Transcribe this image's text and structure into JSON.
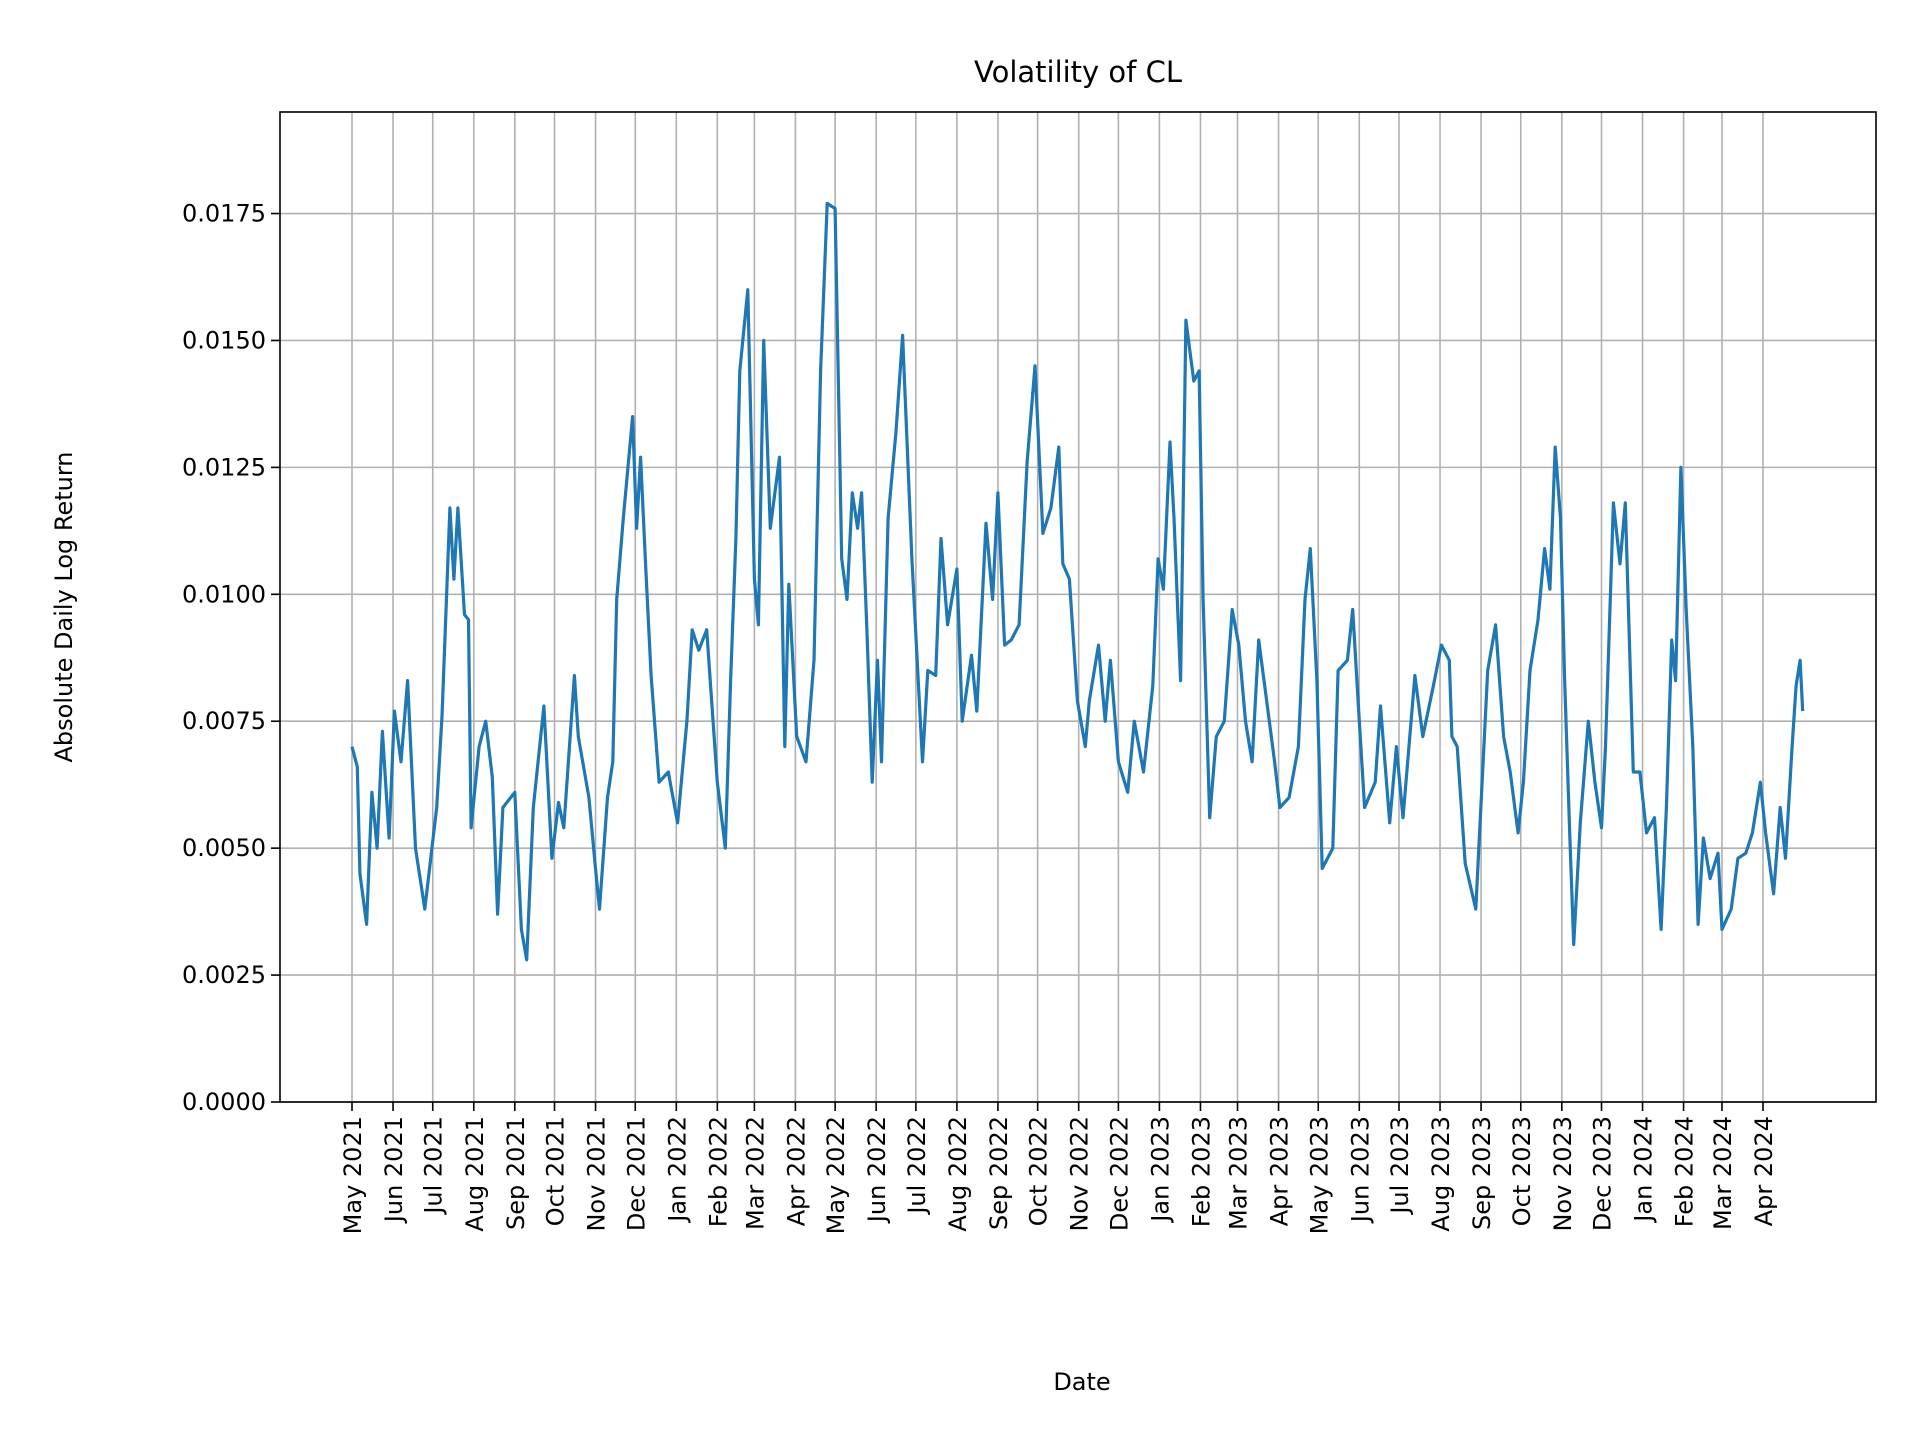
{
  "chart_data": {
    "type": "line",
    "title": "Volatility of CL",
    "xlabel": "Date",
    "ylabel": "Absolute Daily Log Return",
    "ylim": [
      0,
      0.0195
    ],
    "y_ticks": [
      "0.0000",
      "0.0025",
      "0.0050",
      "0.0075",
      "0.0100",
      "0.0125",
      "0.0150",
      "0.0175"
    ],
    "x_ticks": [
      "May 2021",
      "Jun 2021",
      "Jul 2021",
      "Aug 2021",
      "Sep 2021",
      "Oct 2021",
      "Nov 2021",
      "Dec 2021",
      "Jan 2022",
      "Feb 2022",
      "Mar 2022",
      "Apr 2022",
      "May 2022",
      "Jun 2022",
      "Jul 2022",
      "Aug 2022",
      "Sep 2022",
      "Oct 2022",
      "Nov 2022",
      "Dec 2022",
      "Jan 2023",
      "Feb 2023",
      "Mar 2023",
      "Apr 2023",
      "May 2023",
      "Jun 2023",
      "Jul 2023",
      "Aug 2023",
      "Sep 2023",
      "Oct 2023",
      "Nov 2023",
      "Dec 2023",
      "Jan 2024",
      "Feb 2024",
      "Mar 2024",
      "Apr 2024"
    ],
    "grid": true,
    "color": "#1f77b4",
    "points": [
      [
        "2021-05-01",
        0.007
      ],
      [
        "2021-05-05",
        0.0066
      ],
      [
        "2021-05-07",
        0.0045
      ],
      [
        "2021-05-12",
        0.0035
      ],
      [
        "2021-05-16",
        0.0061
      ],
      [
        "2021-05-20",
        0.005
      ],
      [
        "2021-05-24",
        0.0073
      ],
      [
        "2021-05-29",
        0.0052
      ],
      [
        "2021-06-02",
        0.0077
      ],
      [
        "2021-06-07",
        0.0067
      ],
      [
        "2021-06-12",
        0.0083
      ],
      [
        "2021-06-18",
        0.005
      ],
      [
        "2021-06-25",
        0.0038
      ],
      [
        "2021-07-04",
        0.0058
      ],
      [
        "2021-07-08",
        0.0076
      ],
      [
        "2021-07-14",
        0.0117
      ],
      [
        "2021-07-17",
        0.0103
      ],
      [
        "2021-07-20",
        0.0117
      ],
      [
        "2021-07-25",
        0.0096
      ],
      [
        "2021-07-28",
        0.0095
      ],
      [
        "2021-07-30",
        0.0054
      ],
      [
        "2021-08-05",
        0.007
      ],
      [
        "2021-08-10",
        0.0075
      ],
      [
        "2021-08-15",
        0.0064
      ],
      [
        "2021-08-19",
        0.0037
      ],
      [
        "2021-08-23",
        0.0058
      ],
      [
        "2021-08-29",
        0.006
      ],
      [
        "2021-09-01",
        0.0061
      ],
      [
        "2021-09-06",
        0.0034
      ],
      [
        "2021-09-10",
        0.0028
      ],
      [
        "2021-09-15",
        0.0058
      ],
      [
        "2021-09-23",
        0.0078
      ],
      [
        "2021-09-29",
        0.0048
      ],
      [
        "2021-10-04",
        0.0059
      ],
      [
        "2021-10-08",
        0.0054
      ],
      [
        "2021-10-16",
        0.0084
      ],
      [
        "2021-10-19",
        0.0072
      ],
      [
        "2021-10-27",
        0.006
      ],
      [
        "2021-11-01",
        0.0046
      ],
      [
        "2021-11-04",
        0.0038
      ],
      [
        "2021-11-10",
        0.006
      ],
      [
        "2021-11-14",
        0.0067
      ],
      [
        "2021-11-17",
        0.0099
      ],
      [
        "2021-11-22",
        0.0115
      ],
      [
        "2021-11-29",
        0.0135
      ],
      [
        "2021-12-02",
        0.0113
      ],
      [
        "2021-12-05",
        0.0127
      ],
      [
        "2021-12-09",
        0.0105
      ],
      [
        "2021-12-13",
        0.0084
      ],
      [
        "2021-12-19",
        0.0063
      ],
      [
        "2021-12-26",
        0.0065
      ],
      [
        "2022-01-02",
        0.0055
      ],
      [
        "2022-01-09",
        0.0075
      ],
      [
        "2022-01-13",
        0.0093
      ],
      [
        "2022-01-18",
        0.0089
      ],
      [
        "2022-01-24",
        0.0093
      ],
      [
        "2022-02-01",
        0.0063
      ],
      [
        "2022-02-07",
        0.005
      ],
      [
        "2022-02-11",
        0.0083
      ],
      [
        "2022-02-15",
        0.0111
      ],
      [
        "2022-02-18",
        0.0144
      ],
      [
        "2022-02-24",
        0.016
      ],
      [
        "2022-03-01",
        0.0103
      ],
      [
        "2022-03-04",
        0.0094
      ],
      [
        "2022-03-08",
        0.015
      ],
      [
        "2022-03-13",
        0.0113
      ],
      [
        "2022-03-20",
        0.0127
      ],
      [
        "2022-03-24",
        0.007
      ],
      [
        "2022-03-27",
        0.0102
      ],
      [
        "2022-04-02",
        0.0072
      ],
      [
        "2022-04-09",
        0.0067
      ],
      [
        "2022-04-15",
        0.0087
      ],
      [
        "2022-04-20",
        0.0144
      ],
      [
        "2022-04-25",
        0.0177
      ],
      [
        "2022-05-01",
        0.0176
      ],
      [
        "2022-05-06",
        0.0107
      ],
      [
        "2022-05-10",
        0.0099
      ],
      [
        "2022-05-14",
        0.012
      ],
      [
        "2022-05-18",
        0.0113
      ],
      [
        "2022-05-21",
        0.012
      ],
      [
        "2022-05-25",
        0.0093
      ],
      [
        "2022-05-29",
        0.0063
      ],
      [
        "2022-06-02",
        0.0087
      ],
      [
        "2022-06-05",
        0.0067
      ],
      [
        "2022-06-10",
        0.0115
      ],
      [
        "2022-06-16",
        0.0132
      ],
      [
        "2022-06-21",
        0.0151
      ],
      [
        "2022-06-28",
        0.0107
      ],
      [
        "2022-07-03",
        0.0082
      ],
      [
        "2022-07-06",
        0.0067
      ],
      [
        "2022-07-10",
        0.0085
      ],
      [
        "2022-07-16",
        0.0084
      ],
      [
        "2022-07-20",
        0.0111
      ],
      [
        "2022-07-25",
        0.0094
      ],
      [
        "2022-08-01",
        0.0105
      ],
      [
        "2022-08-05",
        0.0075
      ],
      [
        "2022-08-12",
        0.0088
      ],
      [
        "2022-08-16",
        0.0077
      ],
      [
        "2022-08-23",
        0.0114
      ],
      [
        "2022-08-28",
        0.0099
      ],
      [
        "2022-09-01",
        0.012
      ],
      [
        "2022-09-06",
        0.009
      ],
      [
        "2022-09-11",
        0.0091
      ],
      [
        "2022-09-17",
        0.0094
      ],
      [
        "2022-09-23",
        0.0126
      ],
      [
        "2022-09-29",
        0.0145
      ],
      [
        "2022-10-05",
        0.0112
      ],
      [
        "2022-10-11",
        0.0117
      ],
      [
        "2022-10-17",
        0.0129
      ],
      [
        "2022-10-20",
        0.0106
      ],
      [
        "2022-10-25",
        0.0103
      ],
      [
        "2022-10-31",
        0.0079
      ],
      [
        "2022-11-06",
        0.007
      ],
      [
        "2022-11-09",
        0.0079
      ],
      [
        "2022-11-16",
        0.009
      ],
      [
        "2022-11-21",
        0.0075
      ],
      [
        "2022-11-25",
        0.0087
      ],
      [
        "2022-12-01",
        0.0067
      ],
      [
        "2022-12-08",
        0.0061
      ],
      [
        "2022-12-13",
        0.0075
      ],
      [
        "2022-12-20",
        0.0065
      ],
      [
        "2022-12-27",
        0.0082
      ],
      [
        "2022-12-31",
        0.0107
      ],
      [
        "2023-01-04",
        0.0101
      ],
      [
        "2023-01-09",
        0.013
      ],
      [
        "2023-01-12",
        0.0115
      ],
      [
        "2023-01-17",
        0.0083
      ],
      [
        "2023-01-21",
        0.0154
      ],
      [
        "2023-01-27",
        0.0142
      ],
      [
        "2023-01-31",
        0.0144
      ],
      [
        "2023-02-03",
        0.0099
      ],
      [
        "2023-02-08",
        0.0056
      ],
      [
        "2023-02-13",
        0.0072
      ],
      [
        "2023-02-19",
        0.0075
      ],
      [
        "2023-02-25",
        0.0097
      ],
      [
        "2023-03-02",
        0.009
      ],
      [
        "2023-03-07",
        0.0075
      ],
      [
        "2023-03-12",
        0.0067
      ],
      [
        "2023-03-17",
        0.0091
      ],
      [
        "2023-03-24",
        0.0077
      ],
      [
        "2023-03-29",
        0.0067
      ],
      [
        "2023-04-02",
        0.0058
      ],
      [
        "2023-04-09",
        0.006
      ],
      [
        "2023-04-16",
        0.007
      ],
      [
        "2023-04-21",
        0.0099
      ],
      [
        "2023-04-25",
        0.0109
      ],
      [
        "2023-04-30",
        0.0083
      ],
      [
        "2023-05-04",
        0.0046
      ],
      [
        "2023-05-12",
        0.005
      ],
      [
        "2023-05-16",
        0.0085
      ],
      [
        "2023-05-23",
        0.0087
      ],
      [
        "2023-05-27",
        0.0097
      ],
      [
        "2023-06-01",
        0.0075
      ],
      [
        "2023-06-05",
        0.0058
      ],
      [
        "2023-06-13",
        0.0063
      ],
      [
        "2023-06-17",
        0.0078
      ],
      [
        "2023-06-24",
        0.0055
      ],
      [
        "2023-06-29",
        0.007
      ],
      [
        "2023-07-04",
        0.0056
      ],
      [
        "2023-07-13",
        0.0084
      ],
      [
        "2023-07-19",
        0.0072
      ],
      [
        "2023-07-27",
        0.0082
      ],
      [
        "2023-08-02",
        0.009
      ],
      [
        "2023-08-08",
        0.0087
      ],
      [
        "2023-08-10",
        0.0072
      ],
      [
        "2023-08-14",
        0.007
      ],
      [
        "2023-08-20",
        0.0047
      ],
      [
        "2023-08-28",
        0.0038
      ],
      [
        "2023-09-01",
        0.0059
      ],
      [
        "2023-09-06",
        0.0085
      ],
      [
        "2023-09-12",
        0.0094
      ],
      [
        "2023-09-18",
        0.0072
      ],
      [
        "2023-09-23",
        0.0065
      ],
      [
        "2023-09-29",
        0.0053
      ],
      [
        "2023-10-03",
        0.0063
      ],
      [
        "2023-10-08",
        0.0085
      ],
      [
        "2023-10-14",
        0.0095
      ],
      [
        "2023-10-19",
        0.0109
      ],
      [
        "2023-10-23",
        0.0101
      ],
      [
        "2023-10-27",
        0.0129
      ],
      [
        "2023-10-31",
        0.0115
      ],
      [
        "2023-11-03",
        0.0084
      ],
      [
        "2023-11-07",
        0.0053
      ],
      [
        "2023-11-10",
        0.0031
      ],
      [
        "2023-11-15",
        0.0055
      ],
      [
        "2023-11-21",
        0.0075
      ],
      [
        "2023-11-26",
        0.0063
      ],
      [
        "2023-12-01",
        0.0054
      ],
      [
        "2023-12-04",
        0.007
      ],
      [
        "2023-12-10",
        0.0118
      ],
      [
        "2023-12-15",
        0.0106
      ],
      [
        "2023-12-19",
        0.0118
      ],
      [
        "2023-12-25",
        0.0065
      ],
      [
        "2023-12-30",
        0.0065
      ],
      [
        "2024-01-04",
        0.0053
      ],
      [
        "2024-01-10",
        0.0056
      ],
      [
        "2024-01-15",
        0.0034
      ],
      [
        "2024-01-19",
        0.0058
      ],
      [
        "2024-01-23",
        0.0091
      ],
      [
        "2024-01-26",
        0.0083
      ],
      [
        "2024-01-30",
        0.0125
      ],
      [
        "2024-02-03",
        0.0097
      ],
      [
        "2024-02-08",
        0.007
      ],
      [
        "2024-02-12",
        0.0035
      ],
      [
        "2024-02-16",
        0.0052
      ],
      [
        "2024-02-21",
        0.0044
      ],
      [
        "2024-02-27",
        0.0049
      ],
      [
        "2024-03-01",
        0.0034
      ],
      [
        "2024-03-08",
        0.0038
      ],
      [
        "2024-03-13",
        0.0048
      ],
      [
        "2024-03-19",
        0.0049
      ],
      [
        "2024-03-24",
        0.0053
      ],
      [
        "2024-03-30",
        0.0063
      ],
      [
        "2024-04-03",
        0.0053
      ],
      [
        "2024-04-09",
        0.0041
      ],
      [
        "2024-04-14",
        0.0058
      ],
      [
        "2024-04-18",
        0.0048
      ],
      [
        "2024-04-23",
        0.007
      ],
      [
        "2024-04-26",
        0.0082
      ],
      [
        "2024-04-29",
        0.0087
      ],
      [
        "2024-05-01",
        0.0077
      ]
    ]
  }
}
